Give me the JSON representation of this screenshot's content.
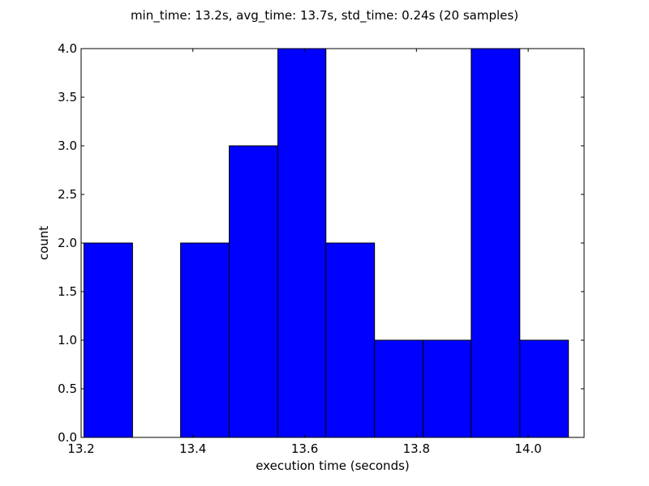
{
  "chart_data": {
    "type": "bar",
    "title": "min_time: 13.2s, avg_time: 13.7s, std_time: 0.24s (20 samples)",
    "xlabel": "execution time (seconds)",
    "ylabel": "count",
    "xlim": [
      13.2,
      14.1
    ],
    "ylim": [
      0,
      4.0
    ],
    "xticks": [
      "13.2",
      "13.4",
      "13.6",
      "13.8",
      "14.0"
    ],
    "yticks": [
      "0.0",
      "0.5",
      "1.0",
      "1.5",
      "2.0",
      "2.5",
      "3.0",
      "3.5",
      "4.0"
    ],
    "bar_color": "#0000ff",
    "grid": false,
    "bins": [
      {
        "x0": 13.205,
        "x1": 13.292,
        "count": 2
      },
      {
        "x0": 13.292,
        "x1": 13.378,
        "count": 0
      },
      {
        "x0": 13.378,
        "x1": 13.465,
        "count": 2
      },
      {
        "x0": 13.465,
        "x1": 13.552,
        "count": 3
      },
      {
        "x0": 13.552,
        "x1": 13.638,
        "count": 4
      },
      {
        "x0": 13.638,
        "x1": 13.725,
        "count": 2
      },
      {
        "x0": 13.725,
        "x1": 13.812,
        "count": 1
      },
      {
        "x0": 13.812,
        "x1": 13.898,
        "count": 1
      },
      {
        "x0": 13.898,
        "x1": 13.985,
        "count": 4
      },
      {
        "x0": 13.985,
        "x1": 14.072,
        "count": 1
      }
    ]
  }
}
